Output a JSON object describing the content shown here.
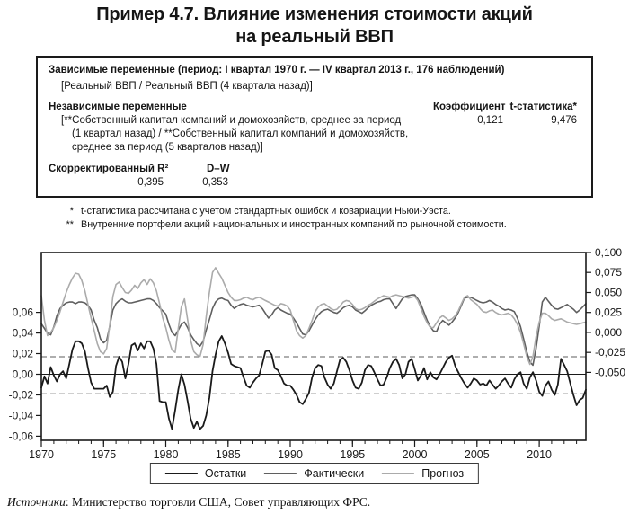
{
  "title": {
    "line1": "Пример 4.7. Влияние изменения стоимости акций",
    "line2": "на реальный ВВП"
  },
  "regression_box": {
    "dependent_header": "Зависимые переменные (период: I квартал 1970 г. — IV квартал 2013 г., 176 наблюдений)",
    "dependent_formula": "[Реальный ВВП / Реальный ВВП (4 квартала назад)]",
    "independent_header": "Независимые переменные",
    "col_coefficient": "Коэффициент",
    "col_tstat": "t-статистика*",
    "independent_line1": "[**Собственный капитал компаний и домохозяйств, среднее за период",
    "independent_line2": "(1 квартал назад) / **Собственный капитал компаний и домохозяйств,",
    "independent_line3": "среднее за период (5 кварталов назад)]",
    "coefficient_value": "0,121",
    "tstat_value": "9,476",
    "r2_label": "Скорректированный R²",
    "dw_label": "D–W",
    "r2_value": "0,395",
    "dw_value": "0,353"
  },
  "footnotes": [
    {
      "marker": "*",
      "text": "t-статистика рассчитана с учетом стандартных ошибок и ковариации Ньюи-Уэста."
    },
    {
      "marker": "**",
      "text": "Внутренние портфели акций национальных и иностранных компаний по рыночной стоимости."
    }
  ],
  "legend": {
    "items": [
      {
        "label": "Остатки",
        "color": "#1a1a1a"
      },
      {
        "label": "Фактически",
        "color": "#5f5f5f"
      },
      {
        "label": "Прогноз",
        "color": "#ababab"
      }
    ]
  },
  "source": {
    "label": "Источники",
    "text": ": Министерство торговли США, Совет управляющих ФРС."
  },
  "chart_data": {
    "type": "line",
    "x_axis": {
      "min": 1970,
      "max": 2013.75,
      "major_ticks": [
        1970,
        1975,
        1980,
        1985,
        1990,
        1995,
        2000,
        2005,
        2010
      ],
      "major_tick_labels": [
        "1970",
        "1975",
        "1980",
        "1985",
        "1990",
        "1995",
        "2000",
        "2005",
        "2010"
      ],
      "minor_tick_step": 1
    },
    "left_axis": {
      "top": 0.118,
      "bottom": -0.064,
      "ticks": [
        {
          "v": 0.06,
          "label": "0,06"
        },
        {
          "v": 0.04,
          "label": "0,04"
        },
        {
          "v": 0.02,
          "label": "0,02"
        },
        {
          "v": 0.0,
          "label": "0,00"
        },
        {
          "v": -0.02,
          "label": "-0,02"
        },
        {
          "v": -0.04,
          "label": "-0,04"
        },
        {
          "v": -0.06,
          "label": "-0,06"
        }
      ]
    },
    "right_axis": {
      "top": 0.1,
      "bottom": -0.135,
      "ticks": [
        {
          "v": 0.1,
          "label": "0,100"
        },
        {
          "v": 0.075,
          "label": "0,075"
        },
        {
          "v": 0.05,
          "label": "0,050"
        },
        {
          "v": 0.025,
          "label": "0,025"
        },
        {
          "v": 0.0,
          "label": "0,000"
        },
        {
          "v": -0.025,
          "label": "-0,025"
        },
        {
          "v": -0.05,
          "label": "-0,050"
        }
      ]
    },
    "zero_line_left": 0.0,
    "dashed_bands_left": [
      0.017,
      -0.019
    ],
    "series": [
      {
        "name": "Остатки",
        "scale": "left",
        "color": "#1a1a1a",
        "width": 1.8,
        "start": 1970,
        "step": 0.25,
        "values": [
          -0.013,
          -0.002,
          -0.009,
          0.007,
          -0.001,
          -0.007,
          0.0,
          0.003,
          -0.004,
          0.01,
          0.024,
          0.032,
          0.032,
          0.03,
          0.022,
          0.006,
          -0.008,
          -0.014,
          -0.014,
          -0.014,
          -0.014,
          -0.011,
          -0.022,
          -0.017,
          0.008,
          0.017,
          0.012,
          -0.004,
          0.01,
          0.028,
          0.03,
          0.023,
          0.03,
          0.025,
          0.032,
          0.032,
          0.025,
          0.01,
          -0.026,
          -0.027,
          -0.027,
          -0.043,
          -0.053,
          -0.035,
          -0.015,
          0.0,
          -0.01,
          -0.026,
          -0.043,
          -0.052,
          -0.046,
          -0.053,
          -0.05,
          -0.04,
          -0.023,
          0.003,
          0.019,
          0.032,
          0.037,
          0.03,
          0.021,
          0.01,
          0.008,
          0.007,
          0.006,
          -0.003,
          -0.011,
          -0.013,
          -0.008,
          -0.004,
          -0.001,
          0.01,
          0.022,
          0.023,
          0.019,
          0.006,
          0.004,
          -0.002,
          -0.009,
          -0.011,
          -0.011,
          -0.015,
          -0.02,
          -0.027,
          -0.029,
          -0.024,
          -0.018,
          -0.003,
          0.006,
          0.009,
          0.008,
          -0.003,
          -0.01,
          -0.014,
          -0.009,
          0.003,
          0.014,
          0.016,
          0.012,
          0.004,
          -0.006,
          -0.013,
          -0.014,
          -0.008,
          0.004,
          0.009,
          0.008,
          0.002,
          -0.005,
          -0.011,
          -0.01,
          -0.003,
          0.006,
          0.012,
          0.015,
          0.009,
          -0.004,
          0.0,
          0.012,
          0.015,
          0.005,
          -0.006,
          -0.001,
          0.006,
          -0.005,
          0.002,
          -0.003,
          -0.005,
          0.0,
          0.006,
          0.012,
          0.016,
          0.018,
          0.008,
          0.002,
          -0.004,
          -0.009,
          -0.013,
          -0.009,
          -0.004,
          -0.006,
          -0.01,
          -0.009,
          -0.011,
          -0.006,
          -0.01,
          -0.014,
          -0.011,
          -0.007,
          -0.004,
          -0.009,
          -0.013,
          -0.005,
          0.0,
          0.002,
          -0.009,
          -0.014,
          -0.003,
          0.002,
          -0.006,
          -0.017,
          -0.021,
          -0.011,
          -0.007,
          -0.015,
          -0.02,
          -0.01,
          0.015,
          0.009,
          0.003,
          -0.009,
          -0.02,
          -0.03,
          -0.025,
          -0.023,
          -0.015
        ]
      },
      {
        "name": "Фактически",
        "scale": "right",
        "color": "#5f5f5f",
        "width": 1.6,
        "start": 1970,
        "step": 0.25,
        "values": [
          0.011,
          0.005,
          -0.001,
          -0.003,
          0.007,
          0.021,
          0.03,
          0.034,
          0.037,
          0.038,
          0.038,
          0.036,
          0.038,
          0.038,
          0.037,
          0.034,
          0.028,
          0.015,
          0.006,
          -0.008,
          -0.013,
          -0.01,
          0.008,
          0.028,
          0.036,
          0.04,
          0.042,
          0.039,
          0.037,
          0.037,
          0.038,
          0.039,
          0.04,
          0.041,
          0.042,
          0.042,
          0.04,
          0.036,
          0.031,
          0.027,
          0.023,
          0.01,
          0.0,
          -0.004,
          0.003,
          0.01,
          0.013,
          0.006,
          -0.003,
          -0.009,
          -0.014,
          -0.017,
          -0.011,
          0.003,
          0.016,
          0.03,
          0.038,
          0.042,
          0.043,
          0.041,
          0.04,
          0.034,
          0.03,
          0.033,
          0.035,
          0.036,
          0.034,
          0.033,
          0.032,
          0.033,
          0.034,
          0.03,
          0.024,
          0.018,
          0.022,
          0.028,
          0.031,
          0.028,
          0.026,
          0.024,
          0.023,
          0.018,
          0.012,
          0.005,
          -0.002,
          -0.003,
          0.002,
          0.009,
          0.016,
          0.022,
          0.026,
          0.028,
          0.029,
          0.027,
          0.025,
          0.024,
          0.027,
          0.031,
          0.033,
          0.034,
          0.032,
          0.028,
          0.026,
          0.024,
          0.027,
          0.031,
          0.034,
          0.036,
          0.038,
          0.039,
          0.041,
          0.042,
          0.042,
          0.036,
          0.03,
          0.036,
          0.042,
          0.045,
          0.046,
          0.047,
          0.047,
          0.042,
          0.035,
          0.025,
          0.015,
          0.007,
          0.002,
          0.001,
          0.01,
          0.015,
          0.012,
          0.009,
          0.013,
          0.018,
          0.025,
          0.034,
          0.043,
          0.044,
          0.044,
          0.042,
          0.04,
          0.038,
          0.037,
          0.038,
          0.04,
          0.038,
          0.035,
          0.033,
          0.03,
          0.028,
          0.029,
          0.028,
          0.026,
          0.018,
          0.007,
          -0.008,
          -0.024,
          -0.037,
          -0.041,
          -0.02,
          0.008,
          0.038,
          0.044,
          0.039,
          0.034,
          0.03,
          0.029,
          0.031,
          0.033,
          0.035,
          0.032,
          0.029,
          0.025,
          0.028,
          0.032,
          0.036
        ]
      },
      {
        "name": "Прогноз",
        "scale": "right",
        "color": "#ababab",
        "width": 1.6,
        "start": 1970,
        "step": 0.25,
        "values": [
          0.046,
          0.015,
          -0.004,
          0.0,
          0.006,
          0.015,
          0.026,
          0.038,
          0.05,
          0.06,
          0.068,
          0.074,
          0.073,
          0.065,
          0.052,
          0.035,
          0.018,
          0.002,
          -0.014,
          -0.024,
          -0.027,
          -0.02,
          0.01,
          0.045,
          0.06,
          0.063,
          0.056,
          0.05,
          0.049,
          0.053,
          0.059,
          0.055,
          0.062,
          0.066,
          0.06,
          0.067,
          0.062,
          0.052,
          0.036,
          0.018,
          0.006,
          -0.01,
          -0.022,
          -0.025,
          0.005,
          0.032,
          0.042,
          0.016,
          -0.01,
          -0.024,
          -0.028,
          -0.03,
          -0.015,
          0.02,
          0.05,
          0.075,
          0.081,
          0.074,
          0.068,
          0.059,
          0.05,
          0.044,
          0.04,
          0.04,
          0.041,
          0.043,
          0.044,
          0.042,
          0.041,
          0.043,
          0.044,
          0.042,
          0.04,
          0.038,
          0.036,
          0.034,
          0.033,
          0.036,
          0.035,
          0.033,
          0.028,
          0.015,
          0.002,
          -0.004,
          -0.007,
          -0.004,
          0.005,
          0.015,
          0.026,
          0.032,
          0.035,
          0.036,
          0.033,
          0.03,
          0.028,
          0.029,
          0.033,
          0.038,
          0.04,
          0.039,
          0.035,
          0.03,
          0.028,
          0.029,
          0.031,
          0.034,
          0.036,
          0.039,
          0.042,
          0.044,
          0.046,
          0.045,
          0.044,
          0.046,
          0.047,
          0.046,
          0.045,
          0.044,
          0.043,
          0.044,
          0.045,
          0.04,
          0.03,
          0.02,
          0.012,
          0.006,
          0.006,
          0.012,
          0.018,
          0.021,
          0.018,
          0.015,
          0.017,
          0.021,
          0.027,
          0.036,
          0.044,
          0.046,
          0.041,
          0.038,
          0.035,
          0.03,
          0.026,
          0.025,
          0.027,
          0.028,
          0.025,
          0.023,
          0.022,
          0.023,
          0.024,
          0.022,
          0.017,
          0.01,
          0.0,
          -0.014,
          -0.03,
          -0.04,
          -0.03,
          -0.005,
          0.013,
          0.024,
          0.024,
          0.021,
          0.017,
          0.015,
          0.016,
          0.017,
          0.015,
          0.013,
          0.012,
          0.011,
          0.01,
          0.011,
          0.012,
          0.013
        ]
      }
    ]
  }
}
